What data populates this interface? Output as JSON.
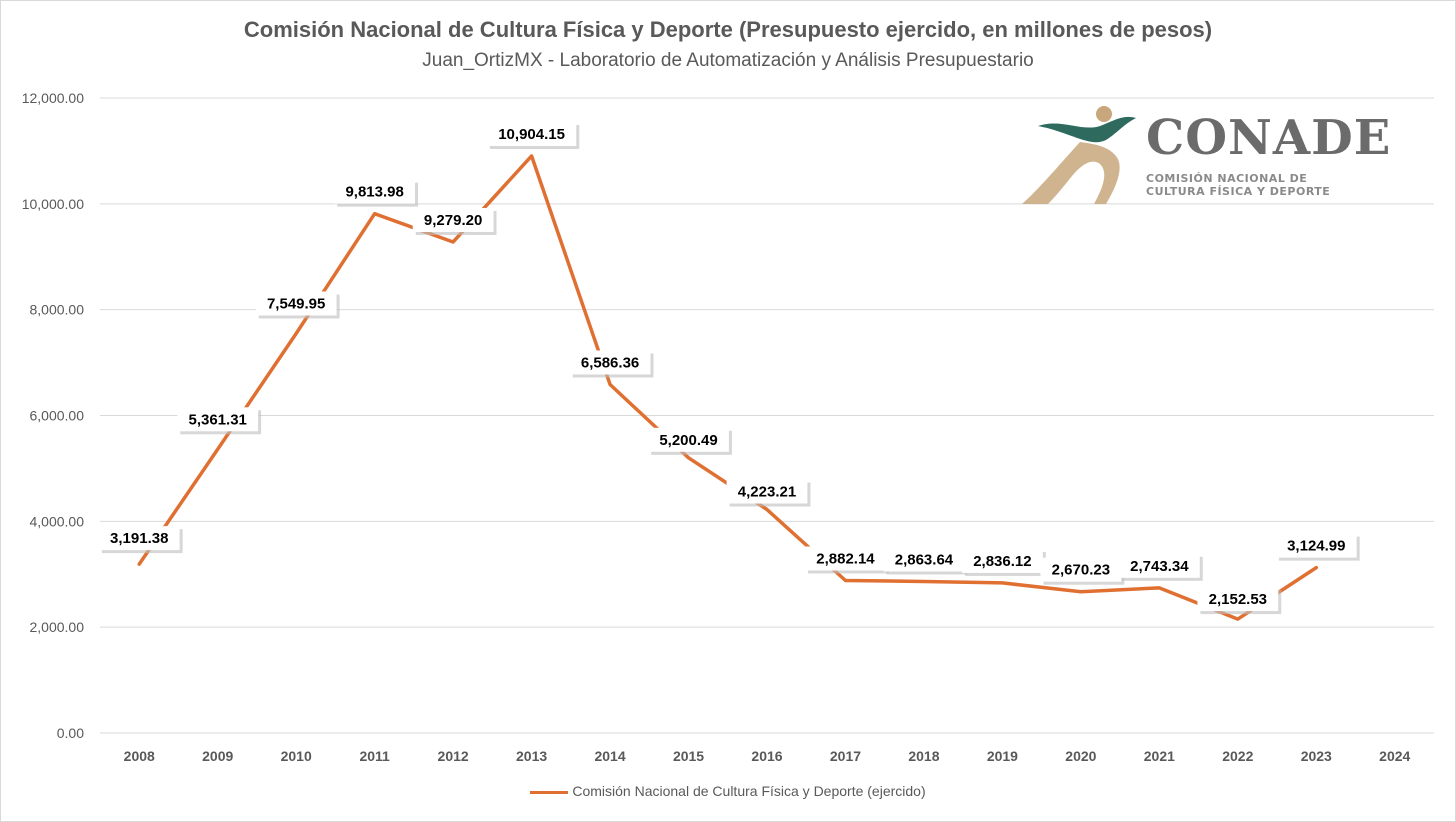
{
  "title": "Comisión Nacional de Cultura Física y Deporte (Presupuesto ejercido, en millones de pesos)",
  "subtitle": "Juan_OrtizMX - Laboratorio de Automatización y Análisis Presupuestario",
  "logo": {
    "word": "CONADE",
    "line1": "COMISIÓN NACIONAL DE",
    "line2": "CULTURA FÍSICA Y DEPORTE",
    "green": "#2e6b5e",
    "gold": "#c8a77c"
  },
  "legend": {
    "label": "Comisión Nacional de Cultura Física y Deporte (ejercido)"
  },
  "colors": {
    "line": "#e07032",
    "grid": "#d9d9d9",
    "axis_text": "#595959",
    "label_text": "#000000"
  },
  "chart_data": {
    "type": "line",
    "title": "Comisión Nacional de Cultura Física y Deporte (Presupuesto ejercido, en millones de pesos)",
    "subtitle": "Juan_OrtizMX - Laboratorio de Automatización y Análisis Presupuestario",
    "categories": [
      "2008",
      "2009",
      "2010",
      "2011",
      "2012",
      "2013",
      "2014",
      "2015",
      "2016",
      "2017",
      "2018",
      "2019",
      "2020",
      "2021",
      "2022",
      "2023",
      "2024"
    ],
    "series": [
      {
        "name": "Comisión Nacional de Cultura Física y Deporte (ejercido)",
        "values": [
          3191.38,
          5361.31,
          7549.95,
          9813.98,
          9279.2,
          10904.15,
          6586.36,
          5200.49,
          4223.21,
          2882.14,
          2863.64,
          2836.12,
          2670.23,
          2743.34,
          2152.53,
          3124.99,
          null
        ],
        "labels": [
          "3,191.38",
          "5,361.31",
          "7,549.95",
          "9,813.98",
          "9,279.20",
          "10,904.15",
          "6,586.36",
          "5,200.49",
          "4,223.21",
          "2,882.14",
          "2,863.64",
          "2,836.12",
          "2,670.23",
          "2,743.34",
          "2,152.53",
          "3,124.99",
          ""
        ]
      }
    ],
    "ylim": [
      0,
      12000
    ],
    "yticks": [
      "0.00",
      "2,000.00",
      "4,000.00",
      "6,000.00",
      "8,000.00",
      "10,000.00",
      "12,000.00"
    ],
    "ytick_values": [
      0,
      2000,
      4000,
      6000,
      8000,
      10000,
      12000
    ],
    "grid": true,
    "legend_position": "bottom",
    "xlabel": "",
    "ylabel": ""
  }
}
